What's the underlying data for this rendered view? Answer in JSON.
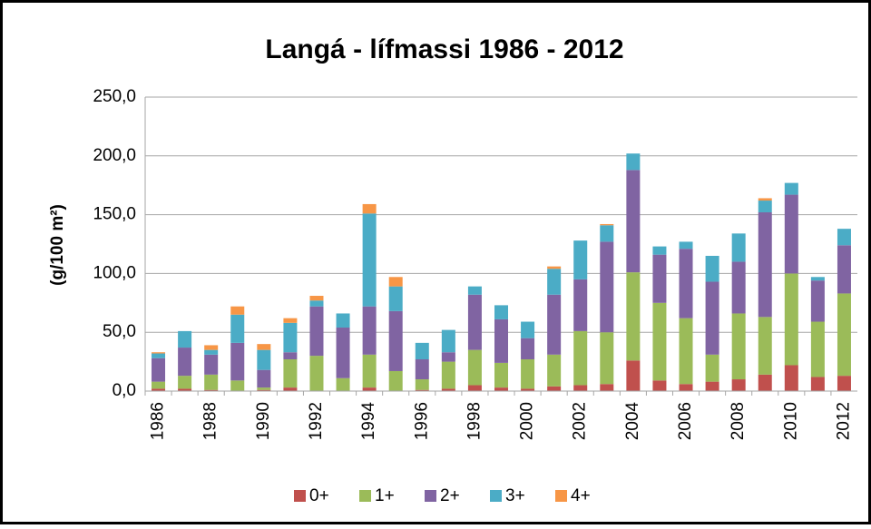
{
  "chart_data": {
    "type": "stacked_bar",
    "title": "Langá - lífmassi 1986 - 2012",
    "y_label": "(g/100 m²)",
    "categories": [
      "1986",
      null,
      "1988",
      null,
      "1990",
      null,
      "1992",
      null,
      "1994",
      null,
      "1996",
      null,
      "1998",
      null,
      "2000",
      null,
      "2002",
      null,
      "2004",
      null,
      "2006",
      null,
      "2008",
      null,
      "2010",
      null,
      "2012"
    ],
    "series": [
      {
        "name": "0+",
        "color": "#c0504d",
        "values": [
          2,
          2,
          1,
          0,
          1,
          3,
          0,
          0,
          3,
          0,
          1,
          2,
          5,
          3,
          2,
          4,
          5,
          6,
          26,
          9,
          6,
          8,
          10,
          14,
          22,
          12,
          13
        ]
      },
      {
        "name": "1+",
        "color": "#9bbb59",
        "values": [
          6,
          11,
          13,
          9,
          2,
          24,
          30,
          11,
          28,
          17,
          9,
          23,
          30,
          21,
          25,
          27,
          46,
          44,
          75,
          66,
          56,
          23,
          56,
          49,
          78,
          47,
          70
        ]
      },
      {
        "name": "2+",
        "color": "#8064a2",
        "values": [
          20,
          24,
          17,
          32,
          15,
          6,
          42,
          43,
          41,
          51,
          17,
          8,
          47,
          37,
          18,
          51,
          44,
          77,
          87,
          41,
          59,
          62,
          44,
          89,
          67,
          35,
          41
        ]
      },
      {
        "name": "3+",
        "color": "#4bacc6",
        "values": [
          4,
          14,
          4,
          24,
          17,
          25,
          5,
          12,
          79,
          21,
          14,
          19,
          7,
          12,
          14,
          22,
          33,
          14,
          14,
          7,
          6,
          22,
          24,
          10,
          10,
          3,
          14
        ]
      },
      {
        "name": "4+",
        "color": "#f79646",
        "values": [
          1,
          0,
          4,
          7,
          5,
          4,
          4,
          0,
          8,
          8,
          0,
          0,
          0,
          0,
          0,
          2,
          0,
          1,
          0,
          0,
          0,
          0,
          0,
          2,
          0,
          0,
          0
        ]
      }
    ],
    "ylim": [
      0,
      250
    ],
    "yticks": [
      {
        "value": 0,
        "label": "0,0"
      },
      {
        "value": 50,
        "label": "50,0"
      },
      {
        "value": 100,
        "label": "100,0"
      },
      {
        "value": 150,
        "label": "150,0"
      },
      {
        "value": 200,
        "label": "200,0"
      },
      {
        "value": 250,
        "label": "250,0"
      }
    ],
    "grid": true,
    "legend": "bottom"
  }
}
